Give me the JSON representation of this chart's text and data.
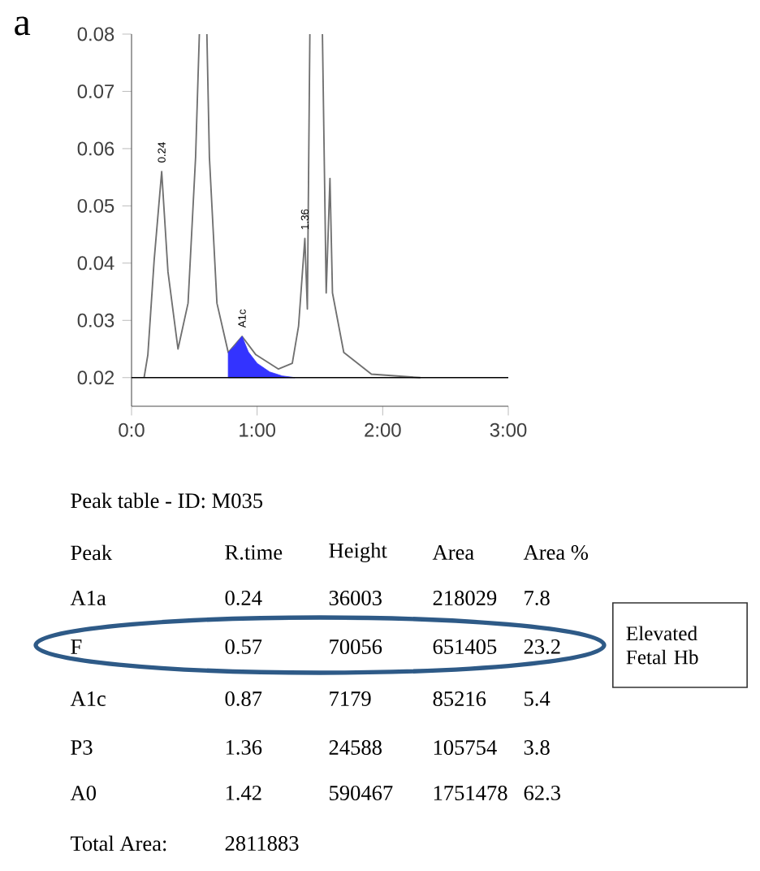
{
  "chart_data": [
    {
      "type": "line",
      "annotations": [
        "a",
        {
          "text": "0.24",
          "x": 0.24,
          "y": 0.056
        },
        {
          "text": "A1c",
          "x": 0.88,
          "y": 0.0272
        },
        {
          "text": "1.36",
          "x": 1.38,
          "y": 0.0443
        }
      ],
      "xlim": [
        0,
        3
      ],
      "ylim": [
        0.015,
        0.08
      ],
      "xticks": [
        {
          "value": 0,
          "label": "0:0"
        },
        {
          "value": 1,
          "label": "1:00"
        },
        {
          "value": 2,
          "label": "2:00"
        },
        {
          "value": 3,
          "label": "3:00"
        }
      ],
      "yticks": [
        0.02,
        0.03,
        0.04,
        0.05,
        0.06,
        0.07,
        0.08
      ],
      "ref_lines": [
        {
          "axis": "y",
          "value": 0.02,
          "color": "#000000"
        }
      ],
      "series": [
        {
          "type": "line",
          "color": "#707070",
          "x": [
            0.1,
            0.13,
            0.18,
            0.24,
            0.29,
            0.37,
            0.45,
            0.51,
            0.54,
            0.57,
            0.6,
            0.62,
            0.68,
            0.77,
            0.88,
            0.99,
            1.17,
            1.28,
            1.33,
            1.38,
            1.4,
            1.42,
            1.47,
            1.52,
            1.55,
            1.58,
            1.6,
            1.69,
            1.91,
            2.3
          ],
          "values": [
            0.02,
            0.024,
            0.0405,
            0.056,
            0.0385,
            0.025,
            0.033,
            0.0585,
            0.08,
            null,
            0.08,
            0.0585,
            0.033,
            0.0244,
            0.0272,
            0.024,
            0.0215,
            0.0225,
            0.029,
            0.0443,
            0.032,
            0.08,
            null,
            0.08,
            0.0348,
            0.0548,
            0.0348,
            0.0244,
            0.0206,
            0.02
          ]
        },
        {
          "type": "area",
          "color": "#3333ff",
          "x": [
            0.77,
            0.77,
            0.82,
            0.88,
            0.93,
            1.0,
            1.1,
            1.2,
            1.3
          ],
          "values": [
            0.02,
            0.0244,
            0.0255,
            0.0272,
            0.0245,
            0.0225,
            0.021,
            0.0203,
            0.02
          ]
        }
      ]
    },
    {
      "type": "other",
      "title": "Peak table  -  ID: M035",
      "annotations": [
        "Peak",
        "R.time",
        "Height",
        "Area",
        "Area %",
        "A1a",
        "0.24",
        "36003",
        "218029",
        "7.8",
        "F",
        "0.57",
        "70056",
        "651405",
        "23.2",
        "A1c",
        "0.87",
        "7179",
        "85216",
        "5.4",
        "P3",
        "1.36",
        "24588",
        "105754",
        "3.8",
        "A0",
        "1.42",
        "590467",
        "1751478",
        "62.3",
        "Total Area:",
        "2811883",
        "Elevated Fetal Hb"
      ]
    }
  ]
}
